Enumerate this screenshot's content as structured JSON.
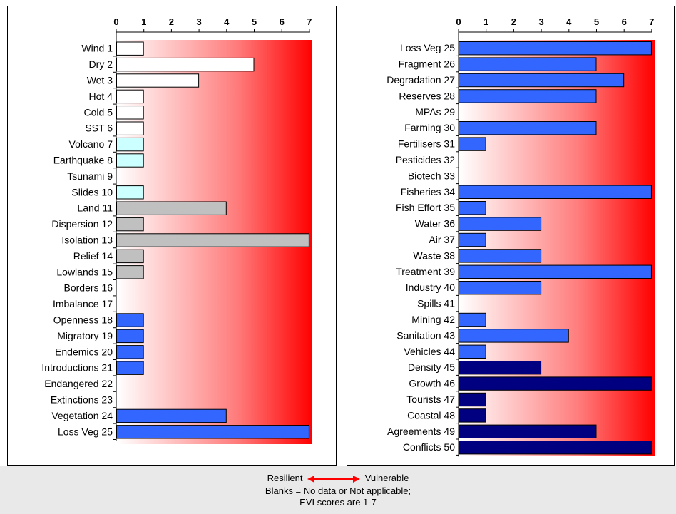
{
  "chart_data": [
    {
      "type": "bar",
      "orientation": "horizontal",
      "xlim": [
        0,
        7
      ],
      "xticks": [
        "0",
        "1",
        "2",
        "3",
        "4",
        "5",
        "6",
        "7"
      ],
      "background": "gradient white-to-red (#ff0000) from left to right",
      "categories": [
        "Wind 1",
        "Dry 2",
        "Wet 3",
        "Hot 4",
        "Cold 5",
        "SST 6",
        "Volcano 7",
        "Earthquake 8",
        "Tsunami 9",
        "Slides 10",
        "Land 11",
        "Dispersion 12",
        "Isolation 13",
        "Relief 14",
        "Lowlands 15",
        "Borders 16",
        "Imbalance 17",
        "Openness 18",
        "Migratory 19",
        "Endemics 20",
        "Introductions 21",
        "Endangered 22",
        "Extinctions 23",
        "Vegetation 24",
        "Loss Veg 25"
      ],
      "values": [
        1,
        5,
        3,
        1,
        1,
        1,
        1,
        1,
        null,
        1,
        4,
        1,
        7,
        1,
        1,
        null,
        null,
        1,
        1,
        1,
        1,
        null,
        null,
        4,
        7
      ],
      "bar_colors": [
        "#ffffff",
        "#ffffff",
        "#ffffff",
        "#ffffff",
        "#ffffff",
        "#ffffff",
        "#ccffff",
        "#ccffff",
        "#ccffff",
        "#ccffff",
        "#c0c0c0",
        "#c0c0c0",
        "#c0c0c0",
        "#c0c0c0",
        "#c0c0c0",
        "#c0c0c0",
        "#c0c0c0",
        "#3366ff",
        "#3366ff",
        "#3366ff",
        "#3366ff",
        "#3366ff",
        "#3366ff",
        "#3366ff",
        "#3366ff"
      ]
    },
    {
      "type": "bar",
      "orientation": "horizontal",
      "xlim": [
        0,
        7
      ],
      "xticks": [
        "0",
        "1",
        "2",
        "3",
        "4",
        "5",
        "6",
        "7"
      ],
      "background": "gradient white-to-red (#ff0000) from left to right",
      "categories": [
        "Loss Veg 25",
        "Fragment 26",
        "Degradation 27",
        "Reserves 28",
        "MPAs 29",
        "Farming 30",
        "Fertilisers 31",
        "Pesticides 32",
        "Biotech 33",
        "Fisheries 34",
        "Fish Effort 35",
        "Water 36",
        "Air 37",
        "Waste 38",
        "Treatment 39",
        "Industry 40",
        "Spills 41",
        "Mining 42",
        "Sanitation 43",
        "Vehicles 44",
        "Density 45",
        "Growth 46",
        "Tourists 47",
        "Coastal 48",
        "Agreements 49",
        "Conflicts 50"
      ],
      "values": [
        7,
        5,
        6,
        5,
        null,
        5,
        1,
        null,
        null,
        7,
        1,
        3,
        1,
        3,
        7,
        3,
        null,
        1,
        4,
        1,
        3,
        7,
        1,
        1,
        5,
        7
      ],
      "bar_colors": [
        "#3366ff",
        "#3366ff",
        "#3366ff",
        "#3366ff",
        "#3366ff",
        "#3366ff",
        "#3366ff",
        "#3366ff",
        "#3366ff",
        "#3366ff",
        "#3366ff",
        "#3366ff",
        "#3366ff",
        "#3366ff",
        "#3366ff",
        "#3366ff",
        "#3366ff",
        "#3366ff",
        "#3366ff",
        "#3366ff",
        "#000080",
        "#000080",
        "#000080",
        "#000080",
        "#000080",
        "#000080"
      ]
    }
  ],
  "footer": {
    "resilient": "Resilient",
    "vulnerable": "Vulnerable",
    "line2": "Blanks = No data or Not applicable;",
    "line3": "EVI scores are 1-7",
    "arrow_color": "#ff0000"
  }
}
